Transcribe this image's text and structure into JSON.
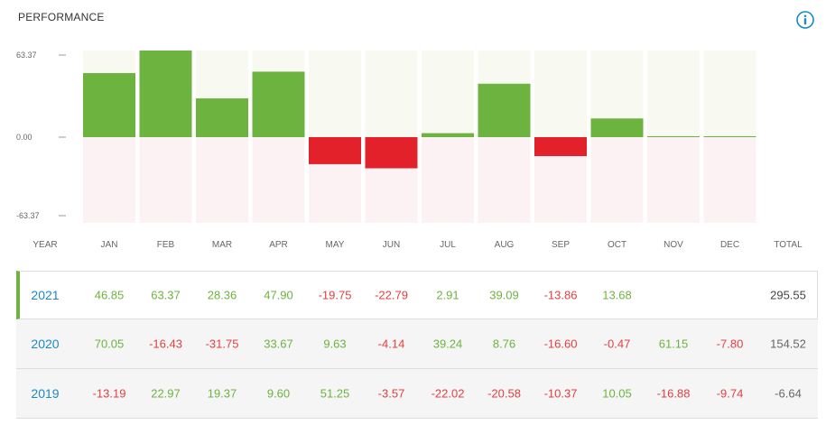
{
  "header": {
    "title": "PERFORMANCE",
    "info_icon": "info-circle-icon"
  },
  "colors": {
    "positive": "#6db33f",
    "negative": "#e3212b",
    "year_link": "#1b8ac5",
    "bg_pos": "#f8f9f0",
    "bg_neg": "#fdf2f3"
  },
  "chart_data": {
    "type": "bar",
    "categories": [
      "JAN",
      "FEB",
      "MAR",
      "APR",
      "MAY",
      "JUN",
      "JUL",
      "AUG",
      "SEP",
      "OCT",
      "NOV",
      "DEC"
    ],
    "values": [
      46.85,
      63.37,
      28.36,
      47.9,
      -19.75,
      -22.79,
      2.91,
      39.09,
      -13.86,
      13.68,
      0.4,
      0.4
    ],
    "yticks": [
      "63.37",
      "0.00",
      "-63.37"
    ],
    "ylim": [
      -63.37,
      63.37
    ],
    "grid": false
  },
  "table": {
    "header_year": "YEAR",
    "header_months": [
      "JAN",
      "FEB",
      "MAR",
      "APR",
      "MAY",
      "JUN",
      "JUL",
      "AUG",
      "SEP",
      "OCT",
      "NOV",
      "DEC"
    ],
    "header_total": "TOTAL",
    "rows": [
      {
        "year": "2021",
        "values": [
          "46.85",
          "63.37",
          "28.36",
          "47.90",
          "-19.75",
          "-22.79",
          "2.91",
          "39.09",
          "-13.86",
          "13.68",
          "",
          ""
        ],
        "total": "295.55"
      },
      {
        "year": "2020",
        "values": [
          "70.05",
          "-16.43",
          "-31.75",
          "33.67",
          "9.63",
          "-4.14",
          "39.24",
          "8.76",
          "-16.60",
          "-0.47",
          "61.15",
          "-7.80"
        ],
        "total": "154.52"
      },
      {
        "year": "2019",
        "values": [
          "-13.19",
          "22.97",
          "19.37",
          "9.60",
          "51.25",
          "-3.57",
          "-22.02",
          "-20.58",
          "-10.37",
          "10.05",
          "-16.88",
          "-9.74"
        ],
        "total": "-6.64"
      }
    ]
  }
}
